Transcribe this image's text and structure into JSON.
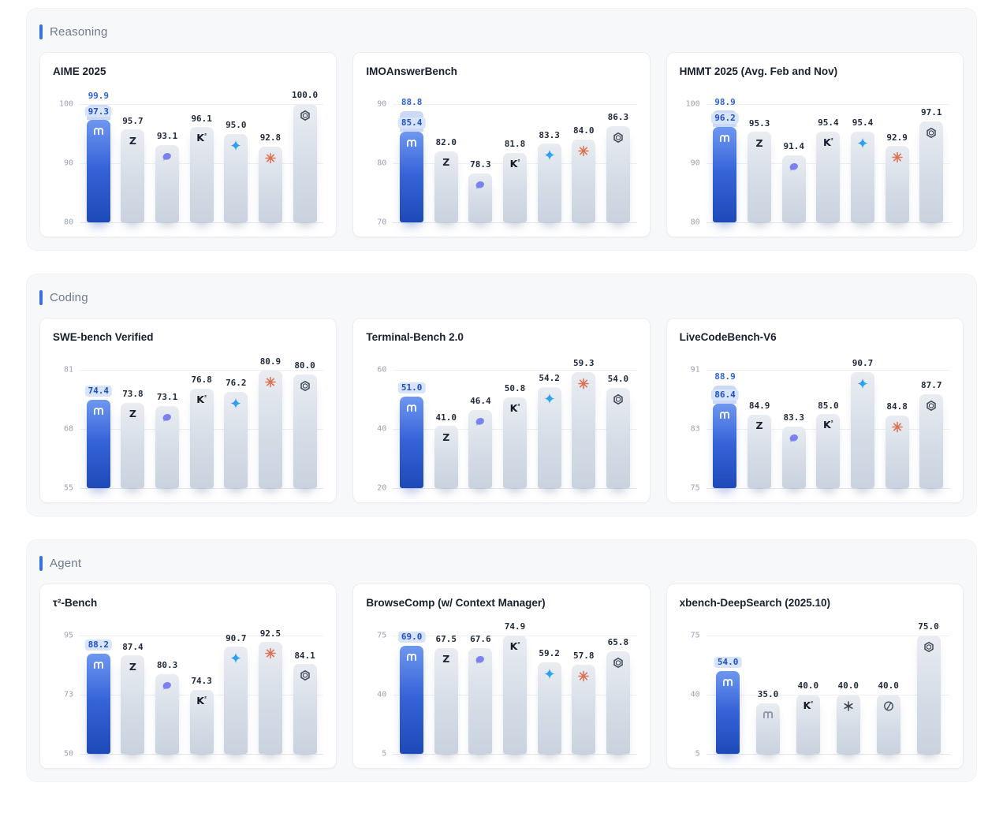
{
  "colors": {
    "accent": "#3a6fe0",
    "featured_bar_top": "#6e97f0",
    "featured_bar_bottom": "#1e4ab8",
    "gray_bar_top": "#e9edf2",
    "gray_bar_bottom": "#c9d2de",
    "chip_bg": "#d7e4fb",
    "chip_text": "#1d4fc4",
    "secondary_label": "#2f63d8",
    "icon_colors": {
      "m-logo-icon": "#8a93a3",
      "z-logo-icon": "#1d2533",
      "whale-icon": "#7b82ee",
      "k-logo-icon": "#141b26",
      "diamond-sparkle-icon": "#3e7df6",
      "starburst-icon": "#dc7454",
      "openai-icon": "#3e4654",
      "orbit-circle-icon": "#49525f",
      "gear-glyph-icon": "#3e4654"
    }
  },
  "sections": [
    {
      "label": "Reasoning",
      "chart_ids": [
        0,
        1,
        2
      ]
    },
    {
      "label": "Coding",
      "chart_ids": [
        3,
        4,
        5
      ]
    },
    {
      "label": "Agent",
      "chart_ids": [
        6,
        7,
        8
      ]
    }
  ],
  "chart_data": [
    {
      "type": "bar",
      "title": "AIME 2025",
      "ylim": [
        80,
        100
      ],
      "yticks": [
        "100",
        "90",
        "80"
      ],
      "bars": [
        {
          "icon": "m-logo-icon",
          "featured": true,
          "value": 97.3,
          "secondary_value": 99.9
        },
        {
          "icon": "z-logo-icon",
          "value": 95.7
        },
        {
          "icon": "whale-icon",
          "value": 93.1
        },
        {
          "icon": "k-logo-icon",
          "value": 96.1
        },
        {
          "icon": "diamond-sparkle-icon",
          "value": 95.0
        },
        {
          "icon": "starburst-icon",
          "value": 92.8
        },
        {
          "icon": "openai-icon",
          "value": 100.0
        }
      ]
    },
    {
      "type": "bar",
      "title": "IMOAnswerBench",
      "ylim": [
        70,
        90
      ],
      "yticks": [
        "90",
        "80",
        "70"
      ],
      "bars": [
        {
          "icon": "m-logo-icon",
          "featured": true,
          "value": 85.4,
          "secondary_value": 88.8
        },
        {
          "icon": "z-logo-icon",
          "value": 82.0
        },
        {
          "icon": "whale-icon",
          "value": 78.3
        },
        {
          "icon": "k-logo-icon",
          "value": 81.8
        },
        {
          "icon": "diamond-sparkle-icon",
          "value": 83.3
        },
        {
          "icon": "starburst-icon",
          "value": 84.0
        },
        {
          "icon": "openai-icon",
          "value": 86.3
        }
      ]
    },
    {
      "type": "bar",
      "title": "HMMT 2025 (Avg. Feb and Nov)",
      "ylim": [
        80,
        100
      ],
      "yticks": [
        "100",
        "90",
        "80"
      ],
      "bars": [
        {
          "icon": "m-logo-icon",
          "featured": true,
          "value": 96.2,
          "secondary_value": 98.9
        },
        {
          "icon": "z-logo-icon",
          "value": 95.3
        },
        {
          "icon": "whale-icon",
          "value": 91.4
        },
        {
          "icon": "k-logo-icon",
          "value": 95.4
        },
        {
          "icon": "diamond-sparkle-icon",
          "value": 95.4
        },
        {
          "icon": "starburst-icon",
          "value": 92.9
        },
        {
          "icon": "openai-icon",
          "value": 97.1
        }
      ]
    },
    {
      "type": "bar",
      "title": "SWE-bench Verified",
      "ylim": [
        55,
        81
      ],
      "yticks": [
        "81",
        "68",
        "55"
      ],
      "bars": [
        {
          "icon": "m-logo-icon",
          "featured": true,
          "value": 74.4
        },
        {
          "icon": "z-logo-icon",
          "value": 73.8
        },
        {
          "icon": "whale-icon",
          "value": 73.1
        },
        {
          "icon": "k-logo-icon",
          "value": 76.8
        },
        {
          "icon": "diamond-sparkle-icon",
          "value": 76.2
        },
        {
          "icon": "starburst-icon",
          "value": 80.9
        },
        {
          "icon": "openai-icon",
          "value": 80.0
        }
      ]
    },
    {
      "type": "bar",
      "title": "Terminal-Bench 2.0",
      "ylim": [
        20,
        60
      ],
      "yticks": [
        "60",
        "40",
        "20"
      ],
      "bars": [
        {
          "icon": "m-logo-icon",
          "featured": true,
          "value": 51.0
        },
        {
          "icon": "z-logo-icon",
          "value": 41.0
        },
        {
          "icon": "whale-icon",
          "value": 46.4
        },
        {
          "icon": "k-logo-icon",
          "value": 50.8
        },
        {
          "icon": "diamond-sparkle-icon",
          "value": 54.2
        },
        {
          "icon": "starburst-icon",
          "value": 59.3
        },
        {
          "icon": "openai-icon",
          "value": 54.0
        }
      ]
    },
    {
      "type": "bar",
      "title": "LiveCodeBench-V6",
      "ylim": [
        75,
        91
      ],
      "yticks": [
        "91",
        "83",
        "75"
      ],
      "bars": [
        {
          "icon": "m-logo-icon",
          "featured": true,
          "value": 86.4,
          "secondary_value": 88.9
        },
        {
          "icon": "z-logo-icon",
          "value": 84.9
        },
        {
          "icon": "whale-icon",
          "value": 83.3
        },
        {
          "icon": "k-logo-icon",
          "value": 85.0
        },
        {
          "icon": "diamond-sparkle-icon",
          "value": 90.7
        },
        {
          "icon": "starburst-icon",
          "value": 84.8
        },
        {
          "icon": "openai-icon",
          "value": 87.7
        }
      ]
    },
    {
      "type": "bar",
      "title": "τ²-Bench",
      "ylim": [
        50,
        95
      ],
      "yticks": [
        "95",
        "73",
        "50"
      ],
      "bars": [
        {
          "icon": "m-logo-icon",
          "featured": true,
          "value": 88.2
        },
        {
          "icon": "z-logo-icon",
          "value": 87.4
        },
        {
          "icon": "whale-icon",
          "value": 80.3
        },
        {
          "icon": "k-logo-icon",
          "value": 74.3
        },
        {
          "icon": "diamond-sparkle-icon",
          "value": 90.7
        },
        {
          "icon": "starburst-icon",
          "value": 92.5
        },
        {
          "icon": "openai-icon",
          "value": 84.1
        }
      ]
    },
    {
      "type": "bar",
      "title": "BrowseComp (w/ Context Manager)",
      "ylim": [
        5,
        75
      ],
      "yticks": [
        "75",
        "40",
        "5"
      ],
      "bars": [
        {
          "icon": "m-logo-icon",
          "featured": true,
          "value": 69.0
        },
        {
          "icon": "z-logo-icon",
          "value": 67.5
        },
        {
          "icon": "whale-icon",
          "value": 67.6
        },
        {
          "icon": "k-logo-icon",
          "value": 74.9
        },
        {
          "icon": "diamond-sparkle-icon",
          "value": 59.2
        },
        {
          "icon": "starburst-icon",
          "value": 57.8
        },
        {
          "icon": "openai-icon",
          "value": 65.8
        }
      ]
    },
    {
      "type": "bar",
      "title": "xbench-DeepSearch (2025.10)",
      "ylim": [
        5,
        75
      ],
      "yticks": [
        "75",
        "40",
        "5"
      ],
      "bars": [
        {
          "icon": "m-logo-icon",
          "featured": true,
          "value": 54.0
        },
        {
          "icon": "m-logo-icon",
          "value": 35.0
        },
        {
          "icon": "k-logo-icon",
          "value": 40.0
        },
        {
          "icon": "gear-glyph-icon",
          "value": 40.0
        },
        {
          "icon": "orbit-circle-icon",
          "value": 40.0
        },
        {
          "icon": "openai-icon",
          "value": 75.0
        }
      ]
    }
  ]
}
